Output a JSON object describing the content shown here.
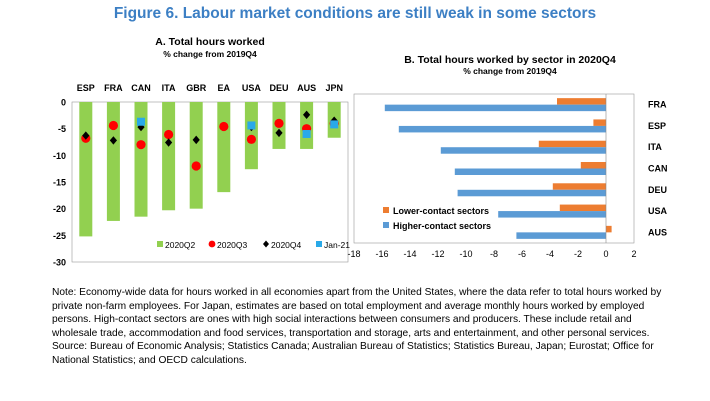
{
  "figure_title": "Figure 6. Labour market conditions are still weak in some sectors",
  "chart_data": [
    {
      "type": "bar",
      "panel_title": "A. Total hours worked",
      "subtitle": "% change from 2019Q4",
      "categories": [
        "ESP",
        "FRA",
        "CAN",
        "ITA",
        "GBR",
        "EA",
        "USA",
        "DEU",
        "AUS",
        "JPN"
      ],
      "ylim": [
        -30,
        0
      ],
      "yticks": [
        0,
        -5,
        -10,
        -15,
        -20,
        -25,
        -30
      ],
      "grid": false,
      "legend_position": "bottom-right",
      "series": [
        {
          "name": "2020Q2",
          "mark": "bar",
          "color": "#92d050",
          "values": [
            -25.2,
            -22.3,
            -21.5,
            -20.3,
            -20.0,
            -16.9,
            -12.6,
            -8.8,
            -8.8,
            -6.7
          ]
        },
        {
          "name": "2020Q3",
          "mark": "circle",
          "color": "#ff0000",
          "values": [
            -6.8,
            -4.4,
            -8.0,
            -6.1,
            -12.0,
            -4.6,
            -7.0,
            -4.0,
            -5.0,
            -4.0
          ]
        },
        {
          "name": "2020Q4",
          "mark": "diamond",
          "color": "#000000",
          "values": [
            -6.3,
            -7.2,
            -4.7,
            -7.6,
            -7.1,
            null,
            -4.7,
            -5.8,
            -2.4,
            -3.5
          ]
        },
        {
          "name": "Jan-21",
          "mark": "square",
          "color": "#29a9e8",
          "values": [
            null,
            null,
            -3.7,
            null,
            null,
            null,
            -4.4,
            null,
            -6.0,
            -4.2
          ]
        }
      ]
    },
    {
      "type": "bar",
      "orientation": "horizontal",
      "panel_title": "B. Total hours worked by sector in 2020Q4",
      "subtitle": "% change from 2019Q4",
      "categories": [
        "FRA",
        "ESP",
        "ITA",
        "CAN",
        "DEU",
        "USA",
        "AUS"
      ],
      "xlim": [
        -18,
        2
      ],
      "xticks": [
        -18,
        -16,
        -14,
        -12,
        -10,
        -8,
        -6,
        -4,
        -2,
        0,
        2
      ],
      "grid": false,
      "legend_position": "bottom-left",
      "series": [
        {
          "name": "Lower-contact sectors",
          "color": "#ed7d31",
          "values": [
            -3.5,
            -0.9,
            -4.8,
            -1.8,
            -3.8,
            -3.3,
            0.4
          ]
        },
        {
          "name": "Higher-contact sectors",
          "color": "#5b9bd5",
          "values": [
            -15.8,
            -14.8,
            -11.8,
            -10.8,
            -10.6,
            -7.7,
            -6.4
          ]
        }
      ]
    }
  ],
  "notes": [
    "Note: Economy-wide data for hours worked in all economies apart from the United States, where the data refer to total hours worked by private non-farm employees. For Japan, estimates are based on total employment and average monthly hours worked by employed persons. High-contact sectors are ones with high social interactions between consumers and producers. These include retail and wholesale trade, accommodation and food services, transportation and storage, arts and entertainment, and other personal services.",
    "Source: Bureau of Economic Analysis; Statistics Canada; Australian Bureau of Statistics; Statistics Bureau, Japan; Eurostat; Office for National Statistics; and OECD calculations."
  ]
}
